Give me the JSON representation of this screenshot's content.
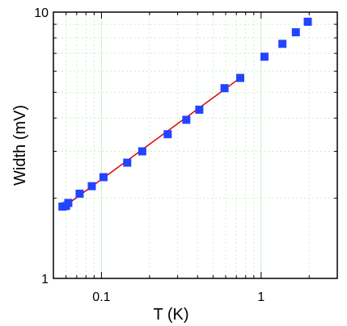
{
  "chart_data": {
    "type": "scatter",
    "title": "",
    "xlabel": "T (K)",
    "ylabel": "Width (mV)",
    "xscale": "log",
    "yscale": "log",
    "xlim": [
      0.05,
      3.0
    ],
    "ylim": [
      1,
      10
    ],
    "grid": true,
    "grid_color": "#c8f0c8",
    "marker_color": "#2244ff",
    "fit_color": "#dd0000",
    "x_tick_labels": [
      "0.1",
      "1"
    ],
    "y_tick_labels": [
      "1",
      "10"
    ],
    "series": [
      {
        "marker": "square",
        "x": [
          0.057,
          0.06,
          0.062,
          0.073,
          0.087,
          0.103,
          0.145,
          0.18,
          0.26,
          0.34,
          0.41,
          0.59,
          0.74,
          1.05,
          1.36,
          1.65,
          1.96
        ],
        "y": [
          1.86,
          1.87,
          1.92,
          2.08,
          2.22,
          2.4,
          2.72,
          3.0,
          3.48,
          3.94,
          4.3,
          5.18,
          5.66,
          6.8,
          7.6,
          8.4,
          9.2
        ]
      }
    ],
    "fit_line": {
      "x": [
        0.057,
        0.74
      ],
      "y": [
        1.84,
        5.66
      ]
    }
  }
}
